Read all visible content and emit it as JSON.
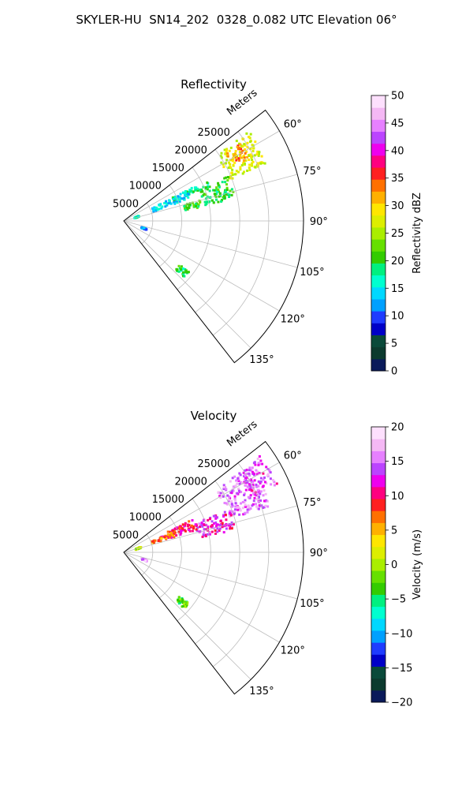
{
  "title": "SKYLER-HU  SN14_202  0328_0.082 UTC Elevation 06°",
  "chart_data": [
    {
      "type": "heatmap",
      "projection": "polar-sector",
      "title": "Reflectivity",
      "radial_label": "Meters",
      "radial_ticks": [
        "5000",
        "10000",
        "15000",
        "20000",
        "25000"
      ],
      "radial_tick_values": [
        5000,
        10000,
        15000,
        20000,
        25000
      ],
      "azimuth_ticks": [
        "60°",
        "75°",
        "90°",
        "105°",
        "120°",
        "135°"
      ],
      "azimuth_tick_values": [
        60,
        75,
        90,
        105,
        120,
        135
      ],
      "azimuth_range": [
        52,
        142
      ],
      "range_limit": 31000,
      "grid": true,
      "colorbar": {
        "label": "Reflectivity dBZ",
        "range": [
          0,
          50
        ],
        "ticks": [
          "0",
          "5",
          "10",
          "15",
          "20",
          "25",
          "30",
          "35",
          "40",
          "45",
          "50"
        ],
        "tick_values": [
          0,
          5,
          10,
          15,
          20,
          25,
          30,
          35,
          40,
          45,
          50
        ],
        "colormap": [
          "#0a1a5a",
          "#0c3a2e",
          "#0a4a3a",
          "#0000c8",
          "#1f3cff",
          "#00a0ff",
          "#00d8ff",
          "#00ffd0",
          "#00f080",
          "#33cc00",
          "#66e000",
          "#aaee00",
          "#ddee00",
          "#ffe600",
          "#ffb000",
          "#ff7000",
          "#ff2020",
          "#ff0080",
          "#ee00ee",
          "#bb44ff",
          "#e680ff",
          "#f4b8f4",
          "#fde0fd"
        ]
      },
      "echo_regions": [
        {
          "az": [
            54,
            68
          ],
          "r": [
            19500,
            26500
          ],
          "value": 27
        },
        {
          "az": [
            56,
            63
          ],
          "r": [
            21000,
            24000
          ],
          "value": 33
        },
        {
          "az": [
            66,
            78
          ],
          "r": [
            14000,
            19500
          ],
          "value": 20
        },
        {
          "az": [
            74,
            79
          ],
          "r": [
            10500,
            13500
          ],
          "value": 21
        },
        {
          "az": [
            63,
            67
          ],
          "r": [
            9000,
            16000
          ],
          "value": 19
        },
        {
          "az": [
            63,
            70
          ],
          "r": [
            5000,
            12000
          ],
          "value": 14
        },
        {
          "az": [
            65,
            69
          ],
          "r": [
            1800,
            2600
          ],
          "value": 17
        },
        {
          "az": [
            106,
            110
          ],
          "r": [
            3000,
            4000
          ],
          "value": 12
        },
        {
          "az": [
            128,
            133
          ],
          "r": [
            12000,
            14000
          ],
          "value": 19
        }
      ]
    },
    {
      "type": "heatmap",
      "projection": "polar-sector",
      "title": "Velocity",
      "radial_label": "Meters",
      "radial_ticks": [
        "5000",
        "10000",
        "15000",
        "20000",
        "25000"
      ],
      "radial_tick_values": [
        5000,
        10000,
        15000,
        20000,
        25000
      ],
      "azimuth_ticks": [
        "60°",
        "75°",
        "90°",
        "105°",
        "120°",
        "135°"
      ],
      "azimuth_tick_values": [
        60,
        75,
        90,
        105,
        120,
        135
      ],
      "azimuth_range": [
        52,
        142
      ],
      "range_limit": 31000,
      "grid": true,
      "colorbar": {
        "label": "Velocity (m/s)",
        "range": [
          -20,
          20
        ],
        "ticks": [
          "−20",
          "−15",
          "−10",
          "−5",
          "0",
          "5",
          "10",
          "15",
          "20"
        ],
        "tick_values": [
          -20,
          -15,
          -10,
          -5,
          0,
          5,
          10,
          15,
          20
        ],
        "colormap": [
          "#0a1a5a",
          "#0c3a2e",
          "#0a4a3a",
          "#0000c8",
          "#1f3cff",
          "#00a0ff",
          "#00d8ff",
          "#00ffd0",
          "#00f080",
          "#33cc00",
          "#66e000",
          "#aaee00",
          "#ddee00",
          "#ffe600",
          "#ffb000",
          "#ff7000",
          "#ff2020",
          "#ff0080",
          "#ee00ee",
          "#bb44ff",
          "#e680ff",
          "#f4b8f4",
          "#fde0fd"
        ]
      },
      "echo_regions": [
        {
          "az": [
            55,
            72
          ],
          "r": [
            19000,
            26500
          ],
          "value": 15
        },
        {
          "az": [
            54,
            66
          ],
          "r": [
            24000,
            29000
          ],
          "value": 14
        },
        {
          "az": [
            67,
            78
          ],
          "r": [
            13000,
            19500
          ],
          "value": 12
        },
        {
          "az": [
            63,
            72
          ],
          "r": [
            6500,
            13000
          ],
          "value": 10
        },
        {
          "az": [
            66,
            70
          ],
          "r": [
            5000,
            9000
          ],
          "value": 6
        },
        {
          "az": [
            67,
            71
          ],
          "r": [
            2000,
            3000
          ],
          "value": 1
        },
        {
          "az": [
            106,
            110
          ],
          "r": [
            3000,
            4000
          ],
          "value": 17
        },
        {
          "az": [
            128,
            133
          ],
          "r": [
            12000,
            14000
          ],
          "value": -3
        }
      ]
    }
  ]
}
